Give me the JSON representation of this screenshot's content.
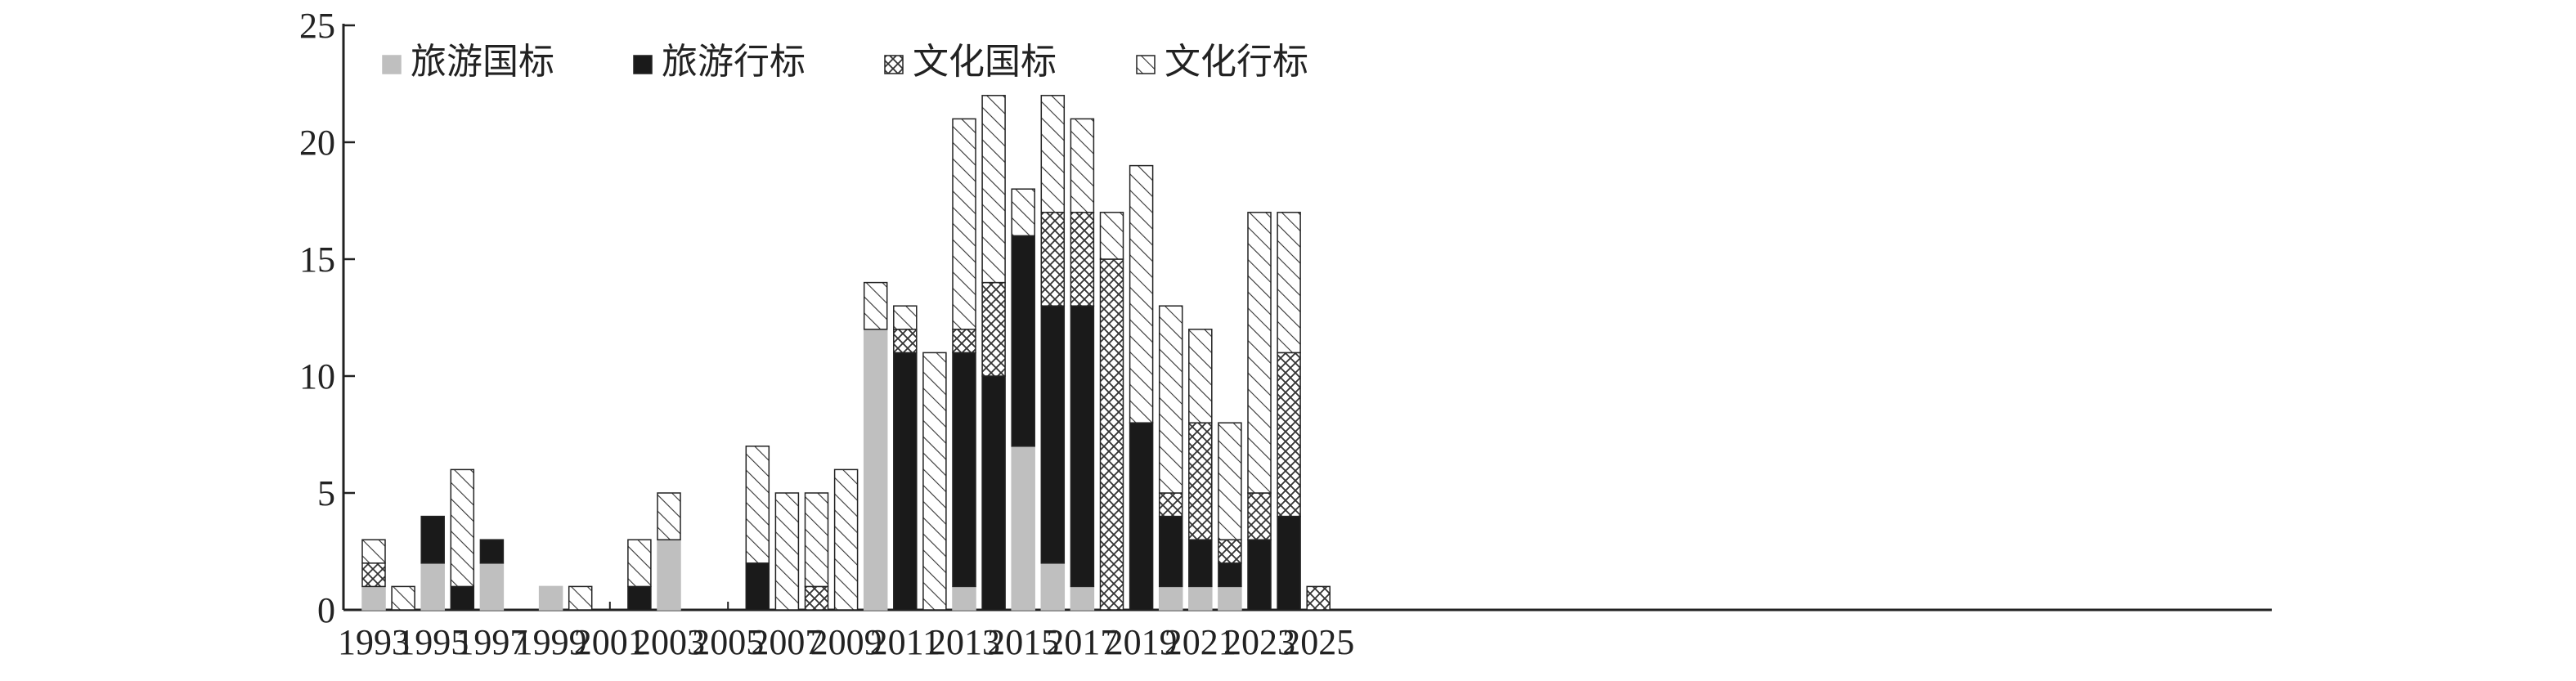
{
  "chart_data": {
    "type": "bar",
    "stacked": true,
    "title": "",
    "xlabel": "",
    "ylabel": "",
    "ylim": [
      0,
      25
    ],
    "yticks": [
      0,
      5,
      10,
      15,
      20,
      25
    ],
    "xtick_labels": [
      "1993",
      "1995",
      "1997",
      "1999",
      "2001",
      "2003",
      "2005",
      "2007",
      "2009",
      "2011",
      "2013",
      "2015",
      "2017",
      "2019",
      "2021",
      "2023",
      "2025"
    ],
    "categories": [
      "1993",
      "1994",
      "1995",
      "1996",
      "1997",
      "1998",
      "1999",
      "2000",
      "2001",
      "2002",
      "2003",
      "2004",
      "2005",
      "2006",
      "2007",
      "2008",
      "2009",
      "2010",
      "2011",
      "2012",
      "2013",
      "2014",
      "2015",
      "2016",
      "2017",
      "2018",
      "2019",
      "2020",
      "2021",
      "2022",
      "2023",
      "2024",
      "2025"
    ],
    "grid": false,
    "legend_position": "top-left",
    "series": [
      {
        "name": "旅游国标",
        "fill": "solid-gray",
        "color": "#bfbfbf",
        "values": [
          1,
          0,
          2,
          0,
          2,
          0,
          1,
          0,
          0,
          0,
          3,
          0,
          0,
          0,
          0,
          0,
          0,
          12,
          0,
          0,
          1,
          0,
          7,
          2,
          1,
          0,
          0,
          1,
          1,
          1,
          0,
          0,
          0
        ]
      },
      {
        "name": "旅游行标",
        "fill": "solid-black",
        "color": "#1a1a1a",
        "values": [
          0,
          0,
          2,
          1,
          1,
          0,
          0,
          0,
          0,
          1,
          0,
          0,
          0,
          2,
          0,
          0,
          0,
          0,
          11,
          0,
          10,
          10,
          9,
          11,
          12,
          0,
          8,
          3,
          2,
          1,
          3,
          4,
          0
        ]
      },
      {
        "name": "文化国标",
        "fill": "crosshatch",
        "color": "#333333",
        "values": [
          1,
          0,
          0,
          0,
          0,
          0,
          0,
          0,
          0,
          0,
          0,
          0,
          0,
          0,
          0,
          1,
          0,
          0,
          1,
          0,
          1,
          4,
          0,
          4,
          4,
          15,
          0,
          1,
          5,
          1,
          2,
          7,
          1
        ]
      },
      {
        "name": "文化行标",
        "fill": "diagonal-hatch",
        "color": "#333333",
        "values": [
          1,
          1,
          0,
          5,
          0,
          0,
          0,
          1,
          0,
          2,
          2,
          0,
          0,
          5,
          5,
          4,
          6,
          2,
          1,
          11,
          9,
          8,
          2,
          5,
          4,
          2,
          11,
          8,
          4,
          5,
          12,
          6,
          0
        ]
      }
    ]
  }
}
